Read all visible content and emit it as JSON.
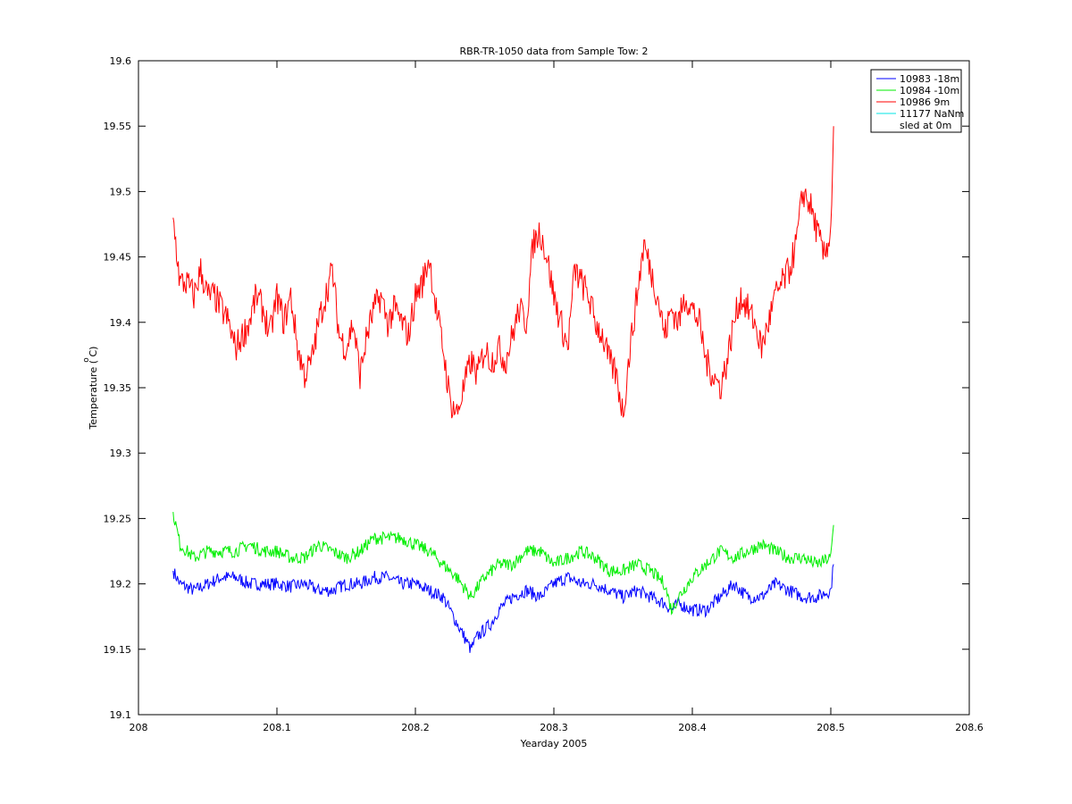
{
  "chart_data": {
    "type": "line",
    "title": "RBR-TR-1050 data from Sample Tow: 2",
    "xlabel": "Yearday 2005",
    "ylabel": "Temperature ( C)",
    "ylabel_superscript": "o",
    "xlim": [
      208,
      208.6
    ],
    "ylim": [
      19.1,
      19.6
    ],
    "xticks": [
      208,
      208.1,
      208.2,
      208.3,
      208.4,
      208.5,
      208.6
    ],
    "xtick_labels": [
      "208",
      "208.1",
      "208.2",
      "208.3",
      "208.4",
      "208.5",
      "208.6"
    ],
    "yticks": [
      19.1,
      19.15,
      19.2,
      19.25,
      19.3,
      19.35,
      19.4,
      19.45,
      19.5,
      19.55,
      19.6
    ],
    "ytick_labels": [
      "19.1",
      "19.15",
      "19.2",
      "19.25",
      "19.3",
      "19.35",
      "19.4",
      "19.45",
      "19.5",
      "19.55",
      "19.6"
    ],
    "grid": false,
    "legend_position": "top-right",
    "legend_extra": "sled at 0m",
    "series": [
      {
        "name": "10983 -18m",
        "color": "#0000ff",
        "x": [
          208.025,
          208.03,
          208.04,
          208.05,
          208.06,
          208.07,
          208.08,
          208.09,
          208.1,
          208.11,
          208.12,
          208.13,
          208.14,
          208.15,
          208.16,
          208.17,
          208.18,
          208.19,
          208.2,
          208.21,
          208.22,
          208.225,
          208.23,
          208.235,
          208.24,
          208.245,
          208.25,
          208.255,
          208.26,
          208.27,
          208.28,
          208.29,
          208.3,
          208.31,
          208.32,
          208.33,
          208.34,
          208.35,
          208.36,
          208.37,
          208.38,
          208.385,
          208.39,
          208.4,
          208.41,
          208.42,
          208.43,
          208.44,
          208.45,
          208.46,
          208.47,
          208.48,
          208.49,
          208.5,
          208.502
        ],
        "y": [
          19.21,
          19.2,
          19.195,
          19.2,
          19.205,
          19.205,
          19.2,
          19.2,
          19.2,
          19.198,
          19.2,
          19.195,
          19.195,
          19.2,
          19.2,
          19.205,
          19.205,
          19.2,
          19.2,
          19.195,
          19.19,
          19.18,
          19.17,
          19.16,
          19.15,
          19.16,
          19.165,
          19.17,
          19.18,
          19.19,
          19.195,
          19.19,
          19.2,
          19.205,
          19.2,
          19.2,
          19.195,
          19.19,
          19.195,
          19.19,
          19.185,
          19.18,
          19.185,
          19.18,
          19.18,
          19.19,
          19.2,
          19.19,
          19.19,
          19.2,
          19.195,
          19.19,
          19.19,
          19.195,
          19.215
        ]
      },
      {
        "name": "10984 -10m",
        "color": "#00ee00",
        "x": [
          208.025,
          208.03,
          208.04,
          208.05,
          208.06,
          208.07,
          208.08,
          208.09,
          208.1,
          208.11,
          208.12,
          208.13,
          208.14,
          208.15,
          208.16,
          208.17,
          208.18,
          208.19,
          208.2,
          208.21,
          208.22,
          208.23,
          208.24,
          208.25,
          208.26,
          208.27,
          208.28,
          208.29,
          208.3,
          208.31,
          208.32,
          208.33,
          208.34,
          208.35,
          208.36,
          208.37,
          208.38,
          208.385,
          208.39,
          208.4,
          208.41,
          208.42,
          208.43,
          208.44,
          208.45,
          208.46,
          208.47,
          208.48,
          208.49,
          208.5,
          208.502
        ],
        "y": [
          19.255,
          19.23,
          19.22,
          19.225,
          19.225,
          19.225,
          19.23,
          19.225,
          19.225,
          19.22,
          19.22,
          19.23,
          19.225,
          19.22,
          19.225,
          19.235,
          19.235,
          19.235,
          19.23,
          19.225,
          19.215,
          19.205,
          19.19,
          19.205,
          19.215,
          19.215,
          19.225,
          19.225,
          19.215,
          19.22,
          19.225,
          19.22,
          19.21,
          19.21,
          19.215,
          19.21,
          19.2,
          19.18,
          19.19,
          19.205,
          19.215,
          19.225,
          19.22,
          19.225,
          19.23,
          19.225,
          19.22,
          19.22,
          19.215,
          19.22,
          19.245
        ]
      },
      {
        "name": "10986 9m",
        "color": "#ff0000",
        "x": [
          208.025,
          208.03,
          208.035,
          208.04,
          208.045,
          208.05,
          208.055,
          208.06,
          208.065,
          208.07,
          208.075,
          208.08,
          208.085,
          208.09,
          208.095,
          208.1,
          208.105,
          208.11,
          208.115,
          208.12,
          208.125,
          208.13,
          208.135,
          208.14,
          208.145,
          208.15,
          208.155,
          208.16,
          208.165,
          208.17,
          208.175,
          208.18,
          208.185,
          208.19,
          208.195,
          208.2,
          208.205,
          208.21,
          208.215,
          208.22,
          208.225,
          208.23,
          208.235,
          208.24,
          208.245,
          208.25,
          208.255,
          208.26,
          208.265,
          208.27,
          208.275,
          208.28,
          208.285,
          208.29,
          208.295,
          208.3,
          208.305,
          208.31,
          208.315,
          208.32,
          208.325,
          208.33,
          208.335,
          208.34,
          208.345,
          208.35,
          208.355,
          208.36,
          208.365,
          208.37,
          208.375,
          208.38,
          208.385,
          208.39,
          208.395,
          208.4,
          208.405,
          208.41,
          208.415,
          208.42,
          208.425,
          208.43,
          208.435,
          208.44,
          208.445,
          208.45,
          208.455,
          208.46,
          208.465,
          208.47,
          208.475,
          208.48,
          208.485,
          208.49,
          208.495,
          208.5,
          208.502
        ],
        "y": [
          19.48,
          19.43,
          19.43,
          19.42,
          19.44,
          19.42,
          19.42,
          19.41,
          19.4,
          19.38,
          19.39,
          19.4,
          19.42,
          19.41,
          19.39,
          19.42,
          19.4,
          19.42,
          19.38,
          19.36,
          19.37,
          19.4,
          19.42,
          19.44,
          19.39,
          19.38,
          19.4,
          19.36,
          19.39,
          19.41,
          19.42,
          19.4,
          19.41,
          19.4,
          19.39,
          19.42,
          19.43,
          19.45,
          19.41,
          19.38,
          19.34,
          19.33,
          19.35,
          19.37,
          19.36,
          19.38,
          19.37,
          19.38,
          19.37,
          19.39,
          19.41,
          19.4,
          19.46,
          19.47,
          19.45,
          19.42,
          19.4,
          19.38,
          19.44,
          19.43,
          19.42,
          19.4,
          19.39,
          19.37,
          19.36,
          19.33,
          19.38,
          19.42,
          19.46,
          19.44,
          19.42,
          19.39,
          19.41,
          19.4,
          19.42,
          19.41,
          19.4,
          19.37,
          19.36,
          19.35,
          19.37,
          19.4,
          19.42,
          19.41,
          19.4,
          19.38,
          19.4,
          19.42,
          19.43,
          19.44,
          19.46,
          19.5,
          19.49,
          19.47,
          19.45,
          19.47,
          19.55
        ]
      },
      {
        "name": "11177 NaNm",
        "color": "#00e5e5",
        "x": [],
        "y": []
      }
    ]
  }
}
